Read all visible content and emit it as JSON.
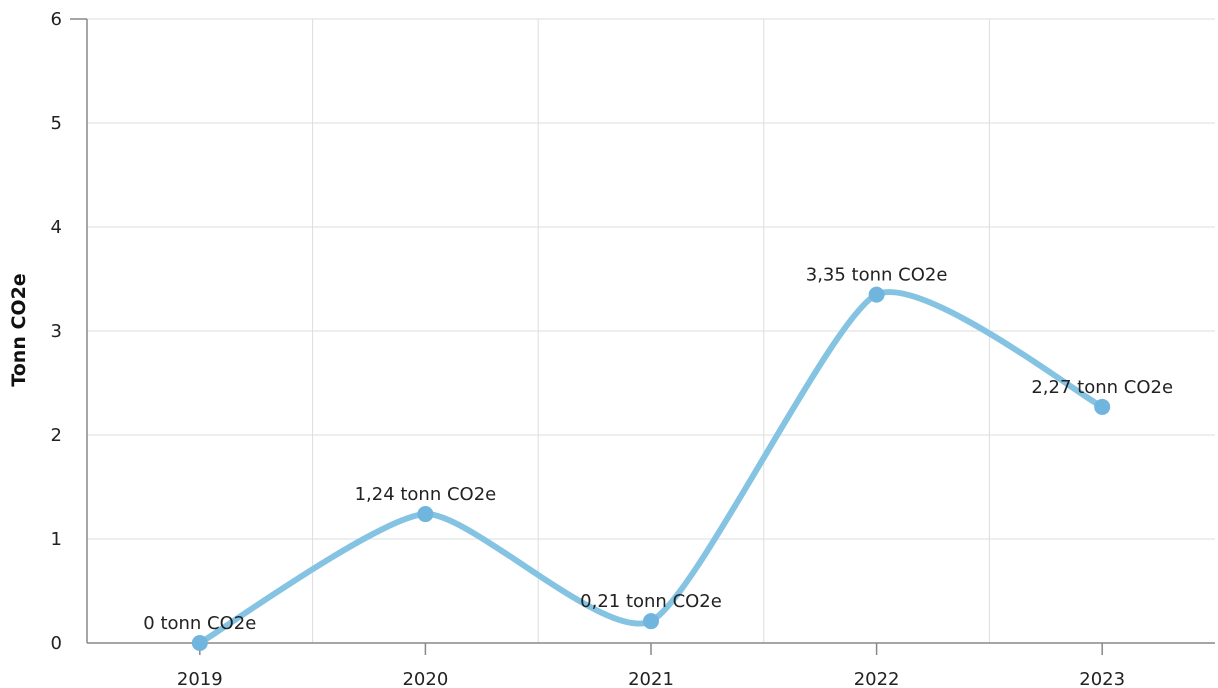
{
  "chart_data": {
    "type": "line",
    "smooth": true,
    "ylabel": "Tonn CO2e",
    "xlabel": "",
    "categories": [
      "2019",
      "2020",
      "2021",
      "2022",
      "2023"
    ],
    "series": [
      {
        "values": [
          0,
          1.24,
          0.21,
          3.35,
          2.27
        ],
        "labels": [
          "0 tonn CO2e",
          "1,24 tonn CO2e",
          "0,21 tonn CO2e",
          "3,35 tonn CO2e",
          "2,27 tonn CO2e"
        ],
        "color": "#85c3e3",
        "marker_color": "#6fb5dd"
      }
    ],
    "ylim": [
      0,
      6
    ],
    "yticks": [
      "0",
      "1",
      "2",
      "3",
      "4",
      "5",
      "6"
    ],
    "grid": true
  }
}
